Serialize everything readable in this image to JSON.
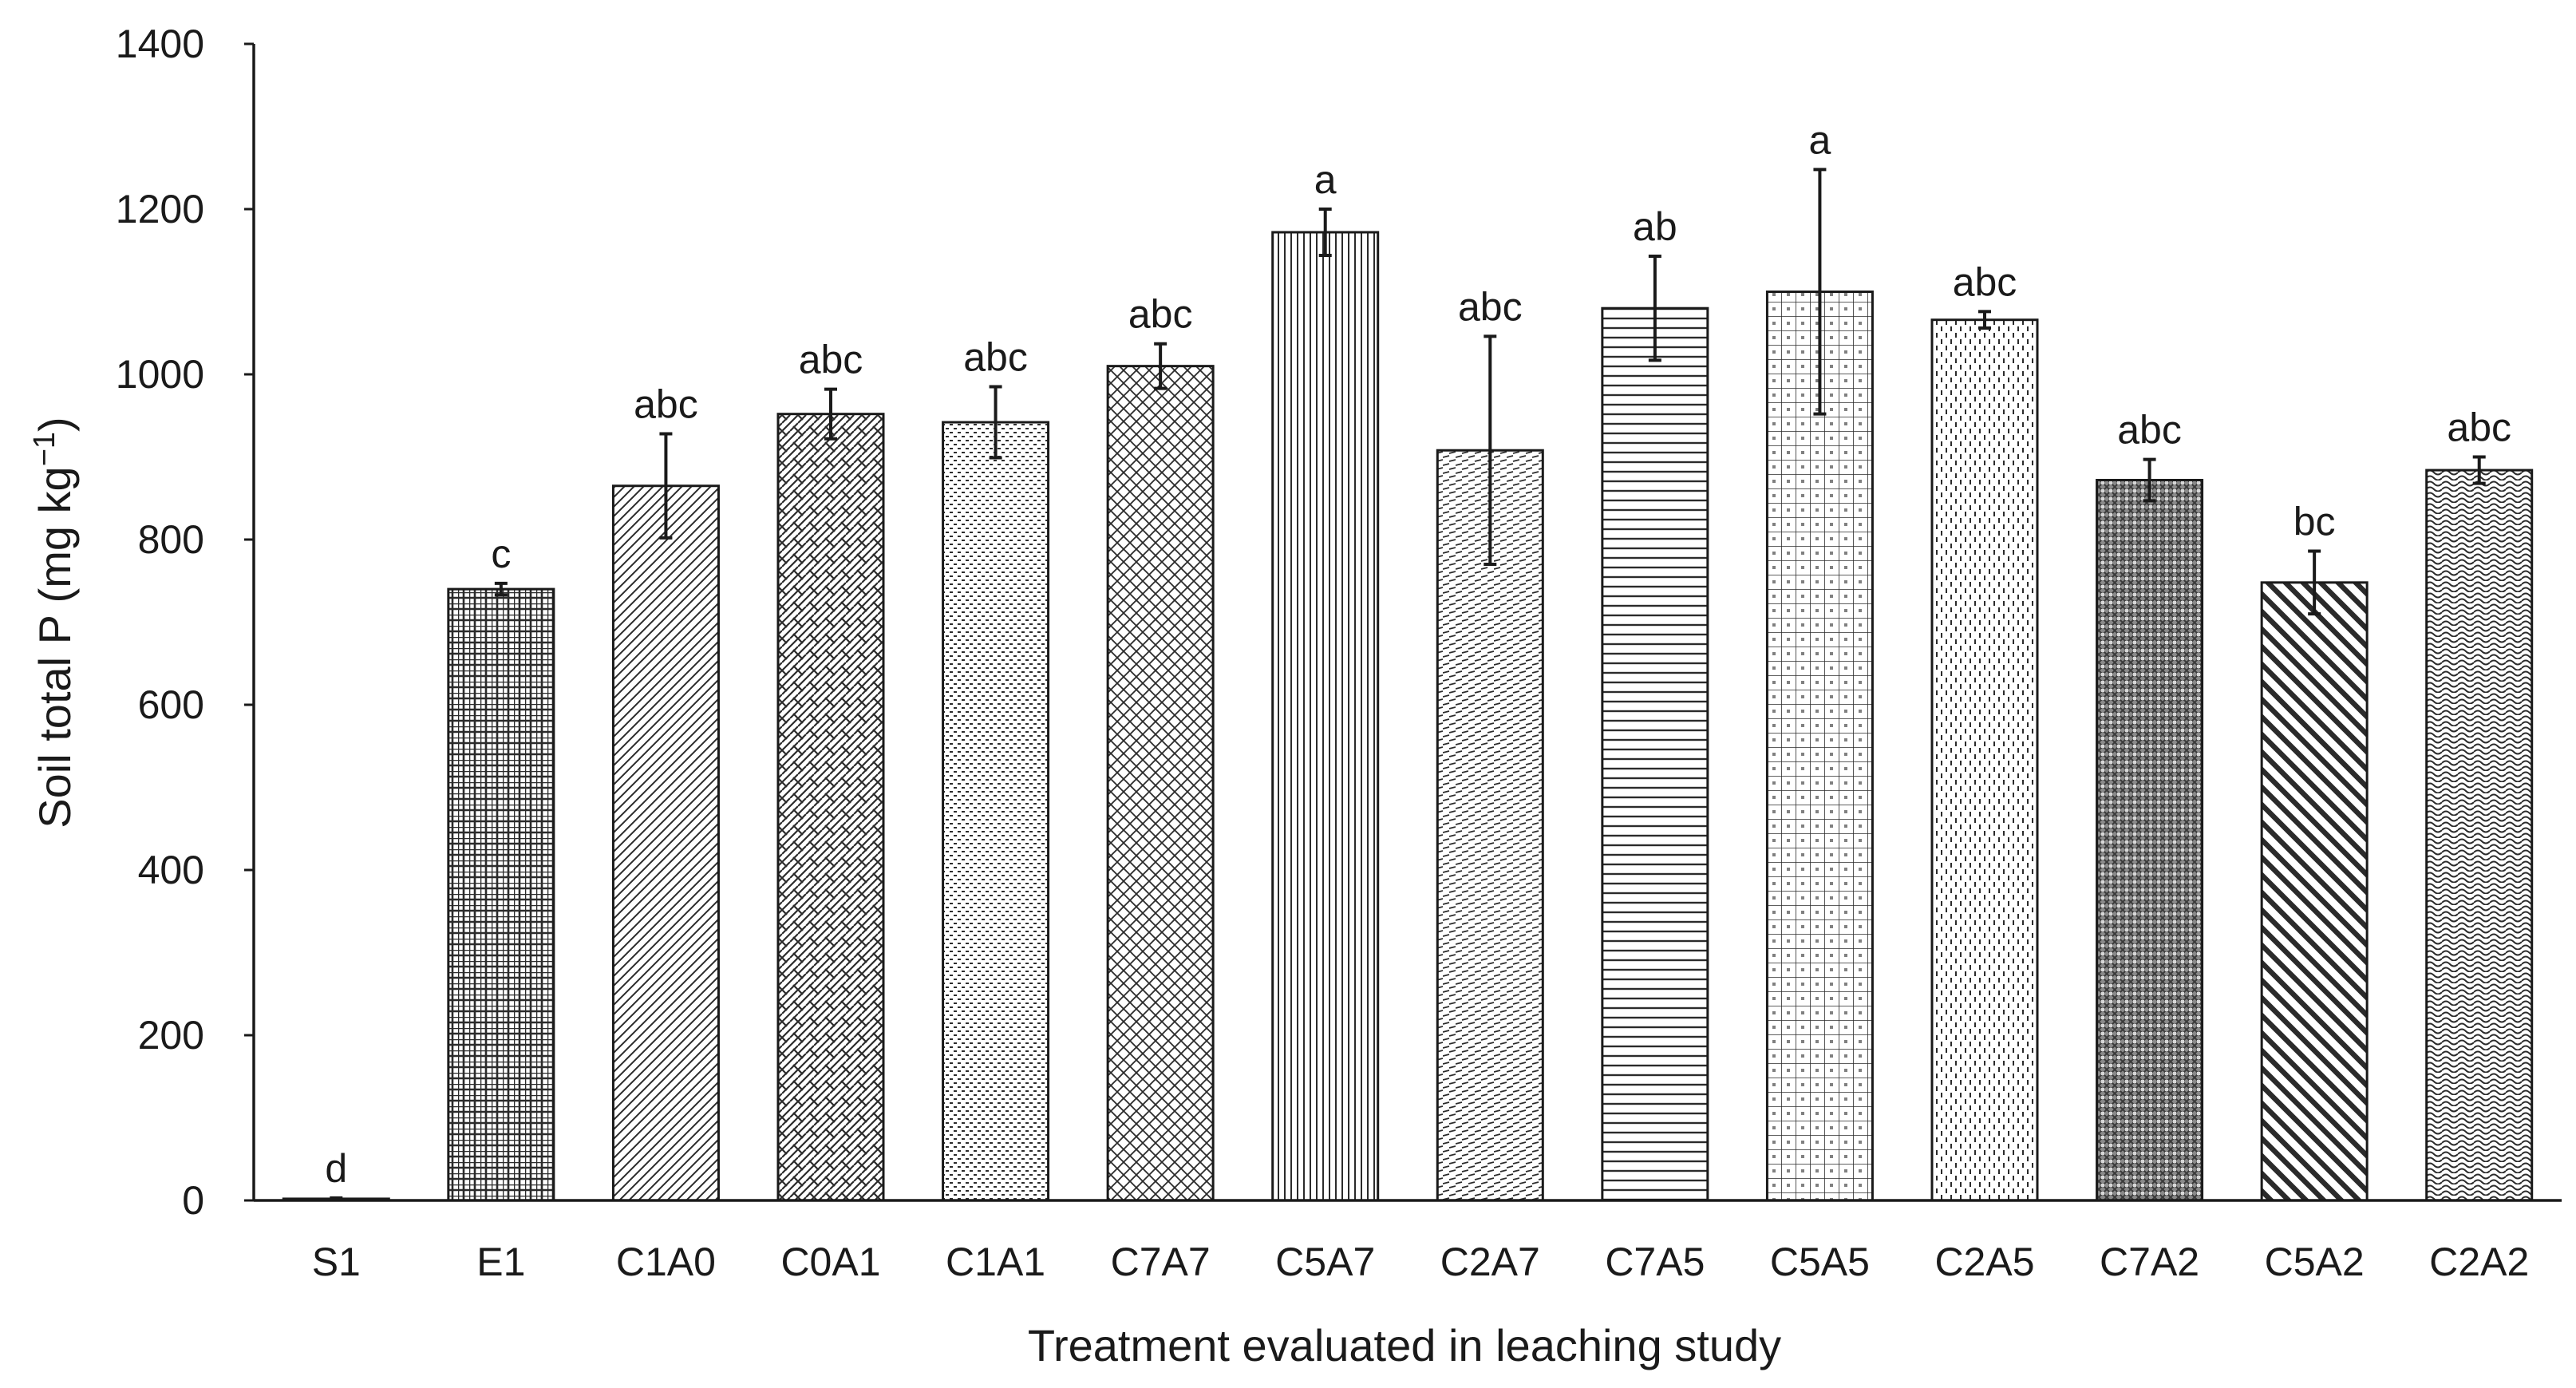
{
  "chart_data": {
    "type": "bar",
    "title": "",
    "xlabel": "Treatment evaluated in leaching study",
    "ylabel_main": "Soil total P (mg kg",
    "ylabel_sup": "−1",
    "ylabel_end": ")",
    "ylim": [
      0,
      1400
    ],
    "yticks": [
      0,
      200,
      400,
      600,
      800,
      1000,
      1200,
      1400
    ],
    "yticks_text": [
      "0",
      "200",
      "400",
      "600",
      "800",
      "1000",
      "1200",
      "1400"
    ],
    "grid": false,
    "legend": "none",
    "categories": [
      "S1",
      "E1",
      "C1A0",
      "C0A1",
      "C1A1",
      "C7A7",
      "C5A7",
      "C2A7",
      "C7A5",
      "C5A5",
      "C2A5",
      "C7A2",
      "C5A2",
      "C2A2"
    ],
    "values": [
      2,
      740,
      865,
      952,
      942,
      1010,
      1172,
      908,
      1080,
      1100,
      1066,
      872,
      748,
      884
    ],
    "error": [
      1,
      7,
      63,
      30,
      43,
      27,
      28,
      138,
      63,
      148,
      10,
      25,
      38,
      16
    ],
    "significance": [
      "d",
      "c",
      "abc",
      "abc",
      "abc",
      "abc",
      "a",
      "abc",
      "ab",
      "a",
      "abc",
      "abc",
      "bc",
      "abc"
    ],
    "fill_patterns": [
      "solid-black",
      "grid",
      "diag-right",
      "diag-cross",
      "small-dots",
      "diamond-cross",
      "vertical-lines",
      "dashed-horizontal",
      "horizontal-lines",
      "small-grid",
      "vertical-dashes",
      "dense-check",
      "wide-diag",
      "wave"
    ],
    "colors": {
      "bar_stroke": "#1a1a1a",
      "pattern": "#2b2b2b",
      "axis": "#1a1a1a",
      "background": "#ffffff"
    }
  }
}
